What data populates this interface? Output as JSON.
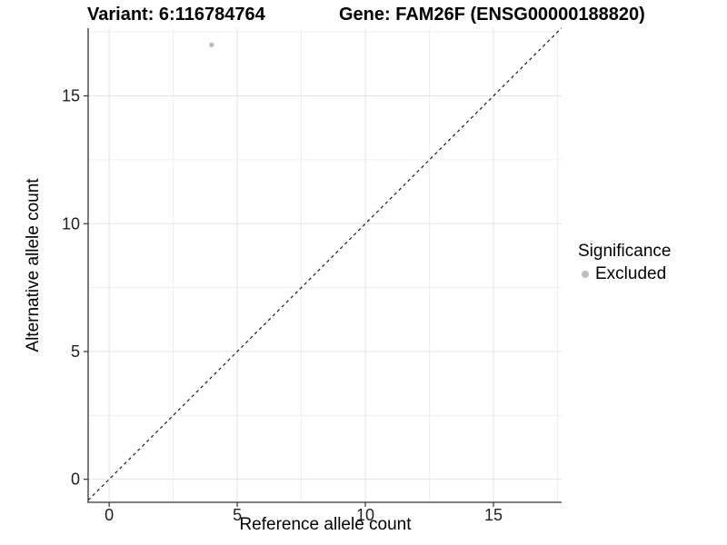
{
  "figure": {
    "titles": {
      "variant": "Variant: 6:116784764",
      "gene": "Gene: FAM26F (ENSG00000188820)"
    }
  },
  "chart_data": {
    "type": "scatter",
    "xlabel": "Reference allele count",
    "ylabel": "Alternative allele count",
    "xlim": [
      -0.82,
      17.66
    ],
    "ylim": [
      -0.9,
      17.65
    ],
    "x_ticks": [
      "0",
      "5",
      "10",
      "15"
    ],
    "x_tick_values": [
      0,
      5,
      10,
      15
    ],
    "y_ticks": [
      "0",
      "5",
      "10",
      "15"
    ],
    "y_tick_values": [
      0,
      5,
      10,
      15
    ],
    "x_minor_ticks": [
      2.5,
      7.5,
      12.5,
      17.5
    ],
    "y_minor_ticks": [
      2.5,
      7.5,
      12.5,
      17.5
    ],
    "grid": "on",
    "points": [
      {
        "x": 4,
        "y": 17,
        "significance": "Excluded"
      }
    ],
    "identity_line": {
      "slope": 1,
      "intercept": 0,
      "style": "dashed"
    },
    "legend": {
      "title": "Significance",
      "position": "right",
      "entries": [
        {
          "label": "Excluded",
          "color": "#bdbdbd"
        }
      ]
    },
    "colors": {
      "point": "#bdbdbd",
      "grid_major": "#e3e3e3",
      "grid_minor": "#efefef",
      "axis_line": "#333333",
      "tick_mark": "#333333",
      "tick_text": "#1f1f1f",
      "reference_line": "#1a1a1a",
      "background": "#ffffff"
    }
  }
}
